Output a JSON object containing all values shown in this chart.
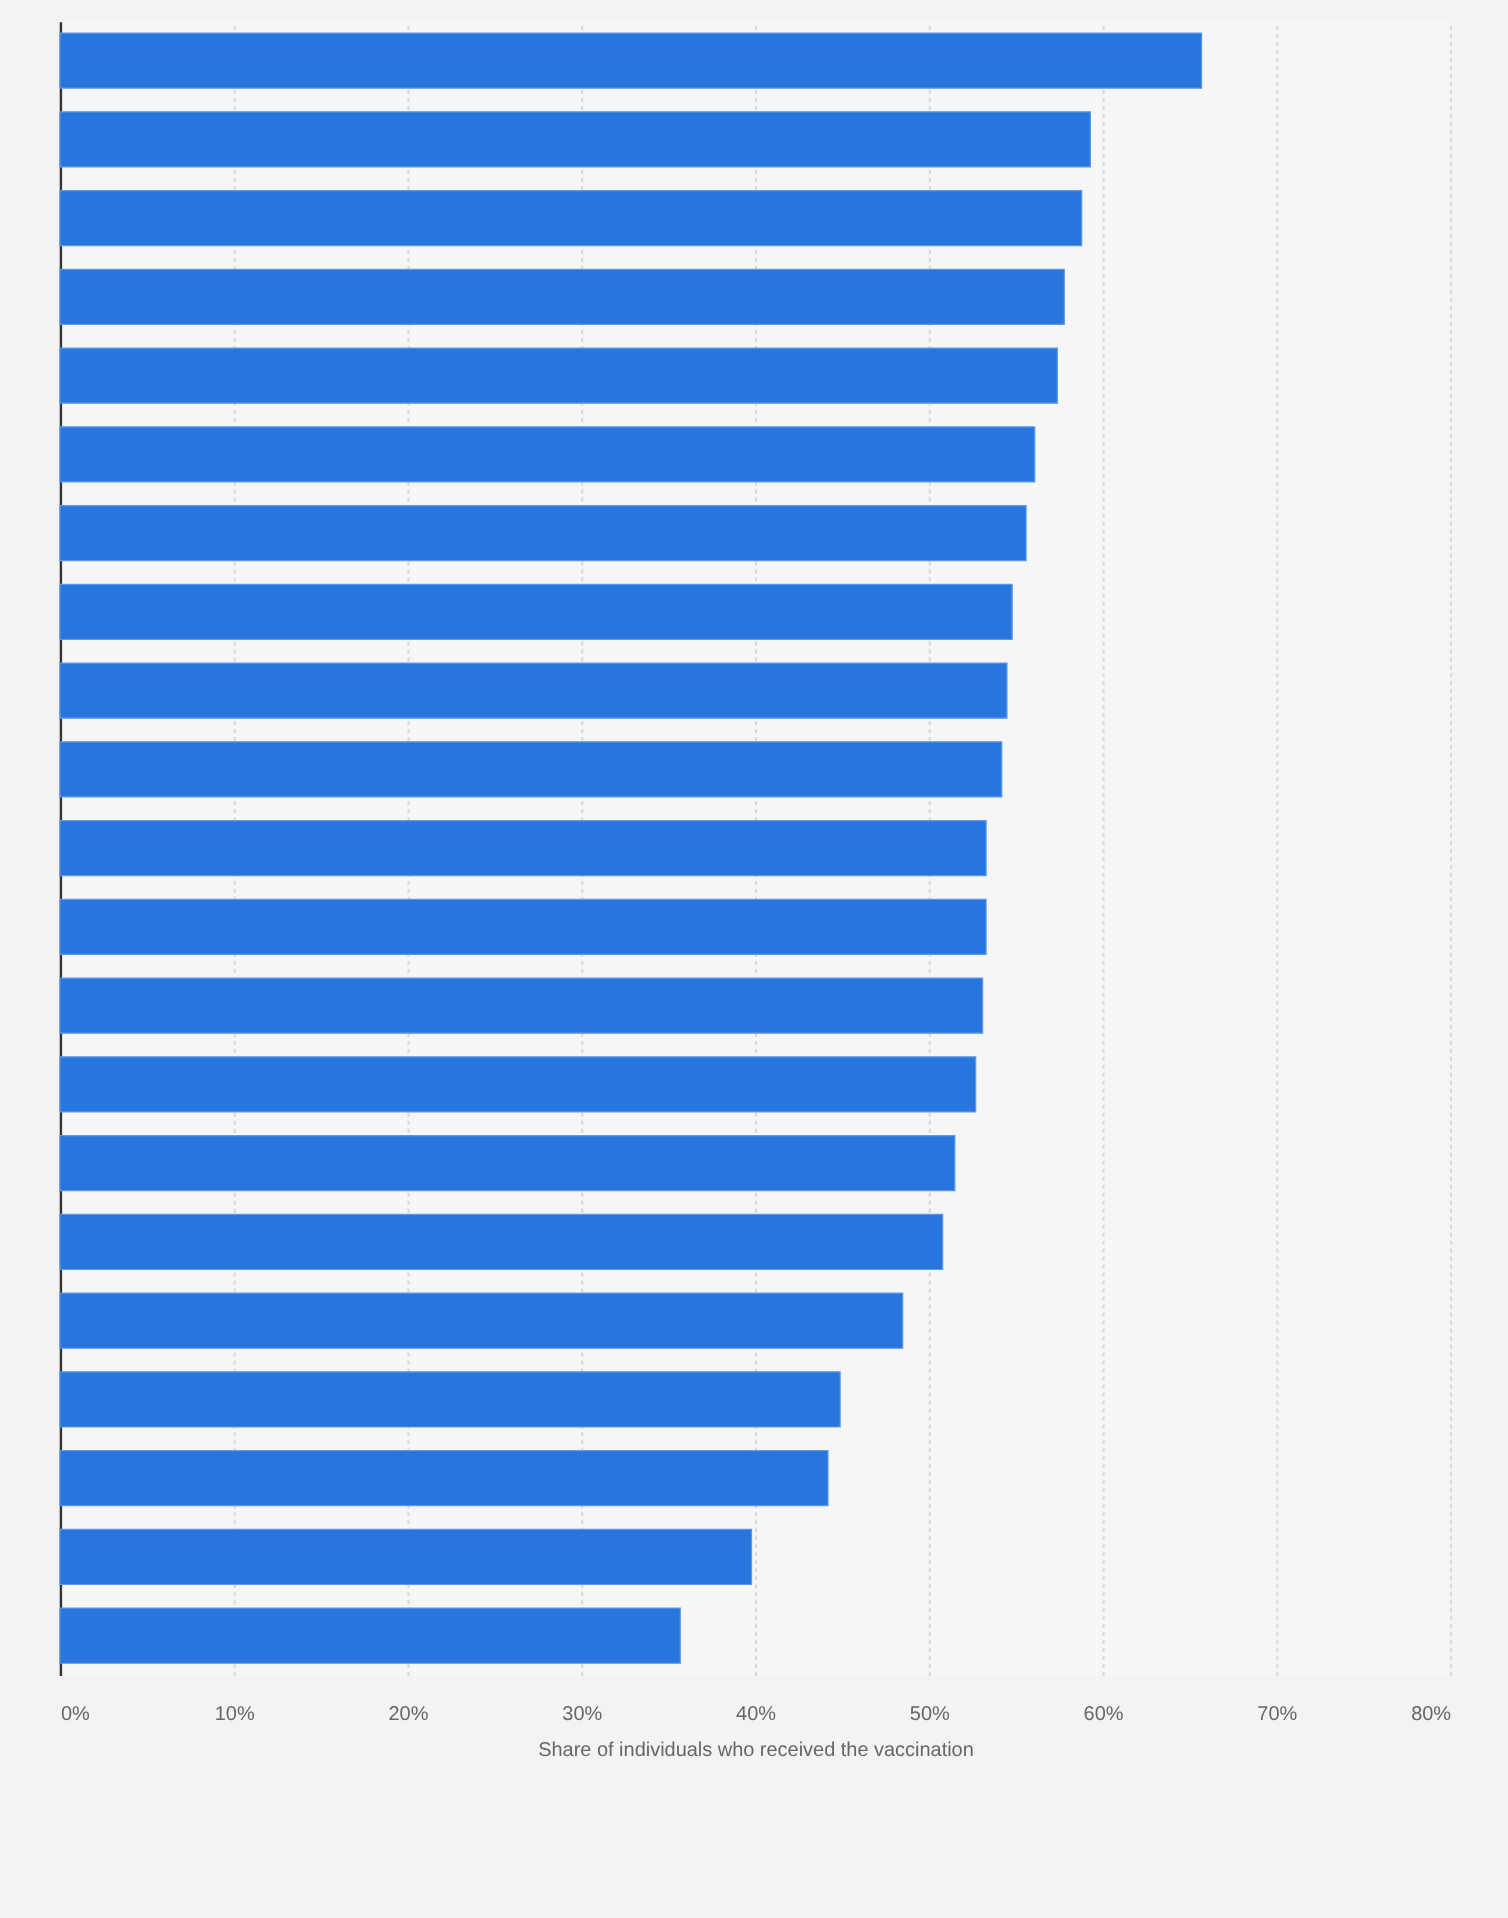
{
  "chart_data": {
    "type": "bar",
    "orientation": "horizontal",
    "xlabel": "Share of individuals who received the vaccination",
    "categories": [
      null,
      null,
      null,
      null,
      null,
      null,
      null,
      null,
      null,
      null,
      null,
      null,
      null,
      null,
      null,
      null,
      null,
      null,
      null,
      null,
      null
    ],
    "values": [
      65.7,
      59.3,
      58.8,
      57.8,
      57.4,
      56.1,
      55.6,
      54.8,
      54.5,
      54.2,
      53.3,
      53.3,
      53.1,
      52.7,
      51.5,
      50.8,
      48.5,
      44.9,
      44.2,
      39.8,
      35.7
    ],
    "color": "#2876dd",
    "xlim": [
      0,
      80
    ],
    "xticks": [
      {
        "value": 0,
        "label": "0%"
      },
      {
        "value": 10,
        "label": "10%"
      },
      {
        "value": 20,
        "label": "20%"
      },
      {
        "value": 30,
        "label": "30%"
      },
      {
        "value": 40,
        "label": "40%"
      },
      {
        "value": 50,
        "label": "50%"
      },
      {
        "value": 60,
        "label": "60%"
      },
      {
        "value": 70,
        "label": "70%"
      },
      {
        "value": 80,
        "label": "80%"
      }
    ],
    "grid": "x",
    "tick_labels": "x"
  }
}
